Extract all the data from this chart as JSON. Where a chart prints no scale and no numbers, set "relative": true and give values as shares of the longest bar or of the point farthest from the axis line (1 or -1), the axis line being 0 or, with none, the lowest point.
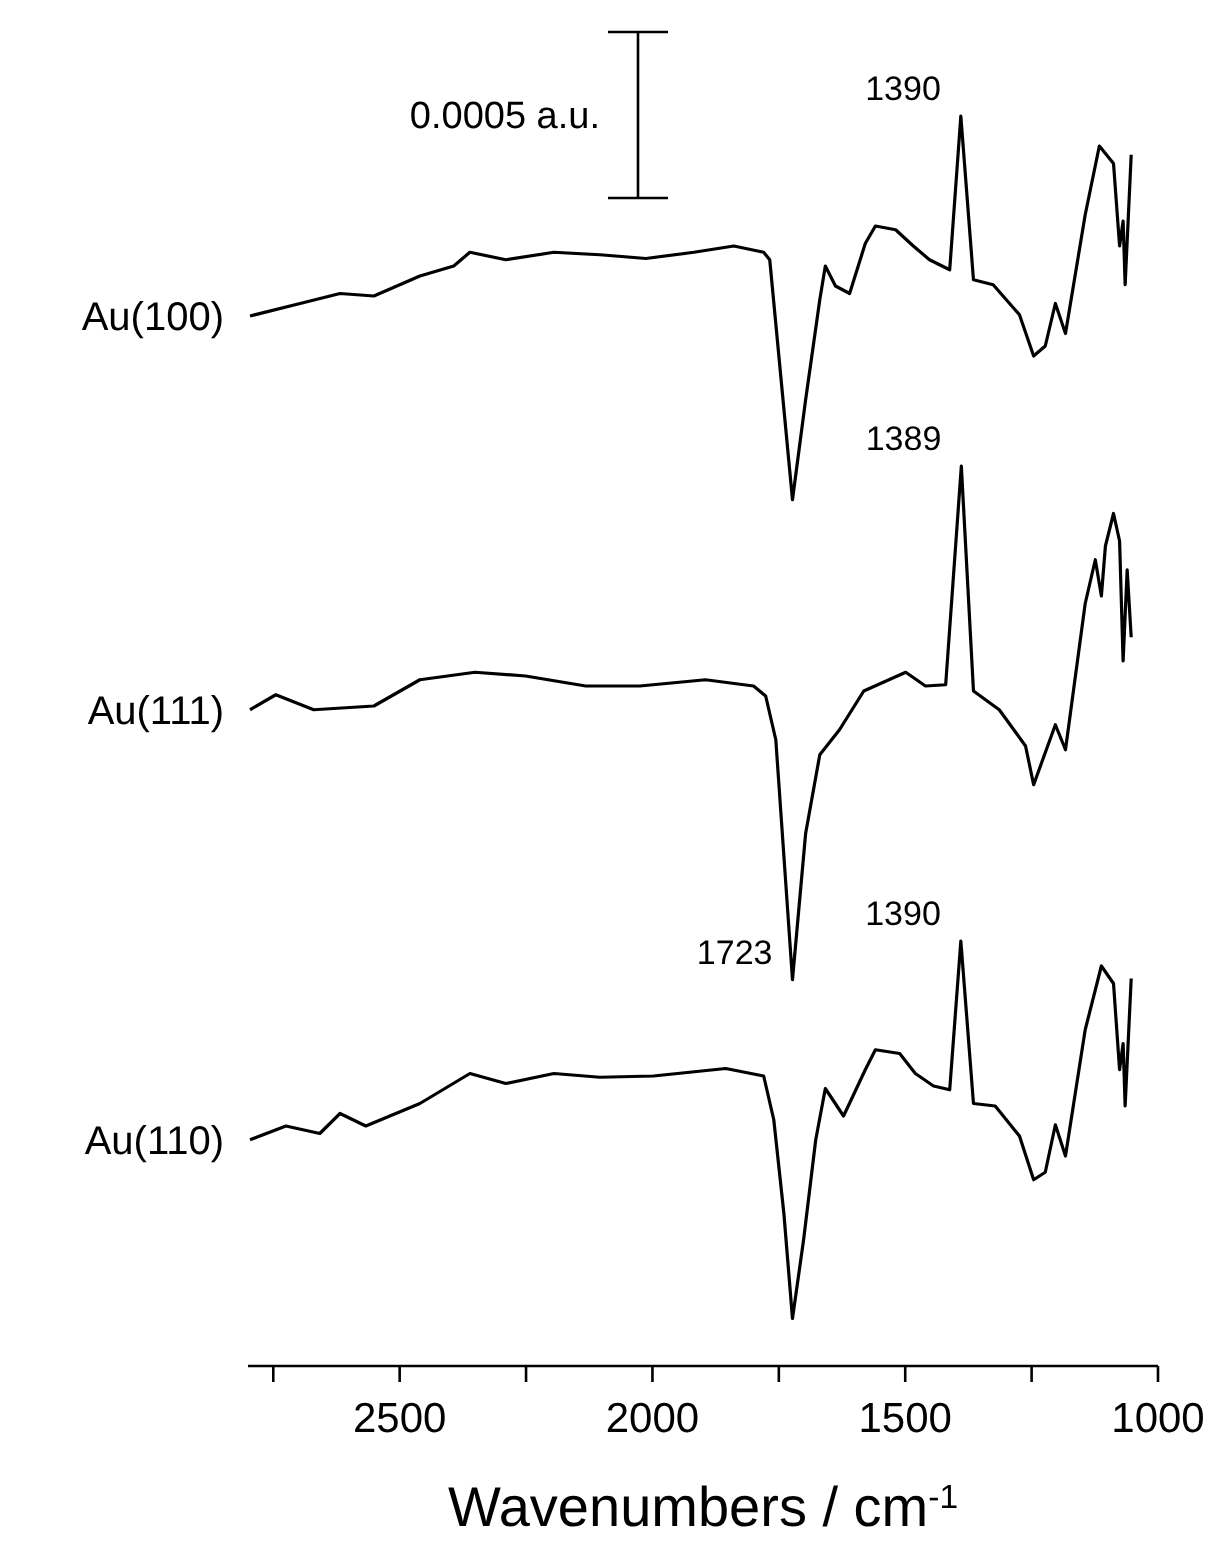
{
  "chart_data": {
    "type": "line",
    "relative": true,
    "xlabel": "Wavenumbers / cm$^{-1}$",
    "xlim": [
      2800,
      1000
    ],
    "xticks": [
      {
        "value": 2750,
        "label": null
      },
      2500,
      {
        "value": 2250,
        "label": null
      },
      2000,
      {
        "value": 1750,
        "label": null
      },
      1500,
      {
        "value": 1250,
        "label": null
      },
      1000
    ],
    "annotations": [
      "0.0005 a.u.",
      {
        "text": "1390",
        "x": 1390,
        "y": 1.0
      },
      {
        "text": "1389",
        "x": 1389,
        "y": 0.72
      },
      {
        "text": "1390",
        "x": 1390,
        "y": 0.34
      },
      {
        "text": "1723",
        "x": 1723,
        "y": 0.309
      }
    ],
    "grid": false,
    "marker": "none",
    "line_style": "solid",
    "series": [
      {
        "name": "Au(100)",
        "color": "#000000",
        "x": [
          2796,
          2697,
          2618,
          2551,
          2460,
          2393,
          2361,
          2290,
          2195,
          2104,
          2013,
          1918,
          1839,
          1780,
          1768,
          1723,
          1697,
          1669,
          1658,
          1638,
          1610,
          1579,
          1559,
          1519,
          1484,
          1452,
          1412,
          1390,
          1365,
          1326,
          1274,
          1246,
          1223,
          1203,
          1183,
          1144,
          1116,
          1088,
          1076,
          1069,
          1065,
          1053
        ],
        "values": [
          0.84,
          0.85,
          0.858,
          0.856,
          0.872,
          0.88,
          0.891,
          0.885,
          0.891,
          0.889,
          0.886,
          0.891,
          0.896,
          0.891,
          0.885,
          0.693,
          0.773,
          0.853,
          0.88,
          0.864,
          0.858,
          0.898,
          0.912,
          0.909,
          0.896,
          0.885,
          0.877,
          1.0,
          0.869,
          0.865,
          0.841,
          0.808,
          0.816,
          0.85,
          0.826,
          0.921,
          0.976,
          0.962,
          0.896,
          0.916,
          0.865,
          0.969
        ]
      },
      {
        "name": "Au(111)",
        "color": "#000000",
        "x": [
          2796,
          2745,
          2670,
          2551,
          2460,
          2351,
          2251,
          2132,
          2025,
          1895,
          1800,
          1776,
          1756,
          1723,
          1697,
          1669,
          1630,
          1582,
          1499,
          1460,
          1420,
          1389,
          1365,
          1314,
          1262,
          1246,
          1203,
          1183,
          1144,
          1124,
          1112,
          1104,
          1088,
          1076,
          1069,
          1061,
          1053
        ],
        "values": [
          0.525,
          0.537,
          0.525,
          0.528,
          0.549,
          0.555,
          0.552,
          0.544,
          0.544,
          0.549,
          0.544,
          0.536,
          0.501,
          0.309,
          0.426,
          0.489,
          0.509,
          0.54,
          0.555,
          0.544,
          0.545,
          0.72,
          0.54,
          0.525,
          0.496,
          0.465,
          0.513,
          0.493,
          0.61,
          0.645,
          0.616,
          0.656,
          0.682,
          0.66,
          0.564,
          0.637,
          0.583
        ]
      },
      {
        "name": "Au(110)",
        "color": "#000000",
        "x": [
          2796,
          2725,
          2658,
          2618,
          2567,
          2460,
          2361,
          2290,
          2195,
          2104,
          1998,
          1855,
          1780,
          1760,
          1740,
          1723,
          1701,
          1677,
          1658,
          1622,
          1579,
          1559,
          1511,
          1480,
          1444,
          1412,
          1390,
          1365,
          1322,
          1274,
          1246,
          1223,
          1203,
          1183,
          1144,
          1112,
          1088,
          1076,
          1069,
          1065,
          1053
        ],
        "values": [
          0.181,
          0.192,
          0.186,
          0.202,
          0.192,
          0.21,
          0.234,
          0.226,
          0.234,
          0.231,
          0.232,
          0.238,
          0.232,
          0.197,
          0.122,
          0.038,
          0.101,
          0.181,
          0.222,
          0.2,
          0.237,
          0.253,
          0.25,
          0.234,
          0.224,
          0.221,
          0.34,
          0.21,
          0.208,
          0.184,
          0.149,
          0.155,
          0.193,
          0.168,
          0.269,
          0.32,
          0.306,
          0.237,
          0.258,
          0.208,
          0.31
        ]
      }
    ]
  }
}
